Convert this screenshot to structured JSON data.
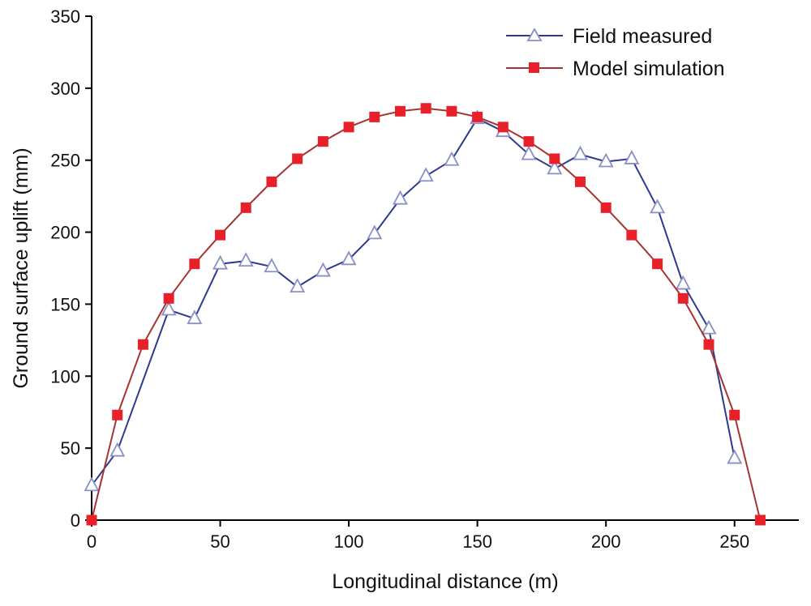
{
  "chart_data": {
    "type": "line",
    "title": "",
    "xlabel": "Longitudinal distance (m)",
    "ylabel": "Ground surface uplift (mm)",
    "xlim": [
      0,
      275
    ],
    "ylim": [
      0,
      350
    ],
    "xticks": [
      0,
      50,
      100,
      150,
      200,
      250
    ],
    "yticks": [
      0,
      50,
      100,
      150,
      200,
      250,
      300,
      350
    ],
    "grid": false,
    "legend_position": "top-right",
    "series": [
      {
        "name": "Field measured",
        "marker": "open-triangle",
        "color": "#2b3a8f",
        "marker_color": "#8a8fc6",
        "x": [
          0,
          10,
          30,
          40,
          50,
          60,
          70,
          80,
          90,
          100,
          110,
          120,
          130,
          140,
          150,
          160,
          170,
          180,
          190,
          200,
          210,
          220,
          230,
          240,
          250
        ],
        "y": [
          24,
          48,
          146,
          140,
          178,
          180,
          176,
          162,
          173,
          181,
          199,
          223,
          239,
          250,
          279,
          270,
          254,
          244,
          254,
          249,
          251,
          217,
          164,
          133,
          43
        ]
      },
      {
        "name": "Model simulation",
        "marker": "filled-square",
        "color": "#a83232",
        "marker_color": "#e8202a",
        "x": [
          0,
          10,
          20,
          30,
          40,
          50,
          60,
          70,
          80,
          90,
          100,
          110,
          120,
          130,
          140,
          150,
          160,
          170,
          180,
          190,
          200,
          210,
          220,
          230,
          240,
          250,
          260
        ],
        "y": [
          0,
          73,
          122,
          154,
          178,
          198,
          217,
          235,
          251,
          263,
          273,
          280,
          284,
          286,
          284,
          280,
          273,
          263,
          251,
          235,
          217,
          198,
          178,
          154,
          122,
          73,
          0
        ]
      }
    ]
  }
}
